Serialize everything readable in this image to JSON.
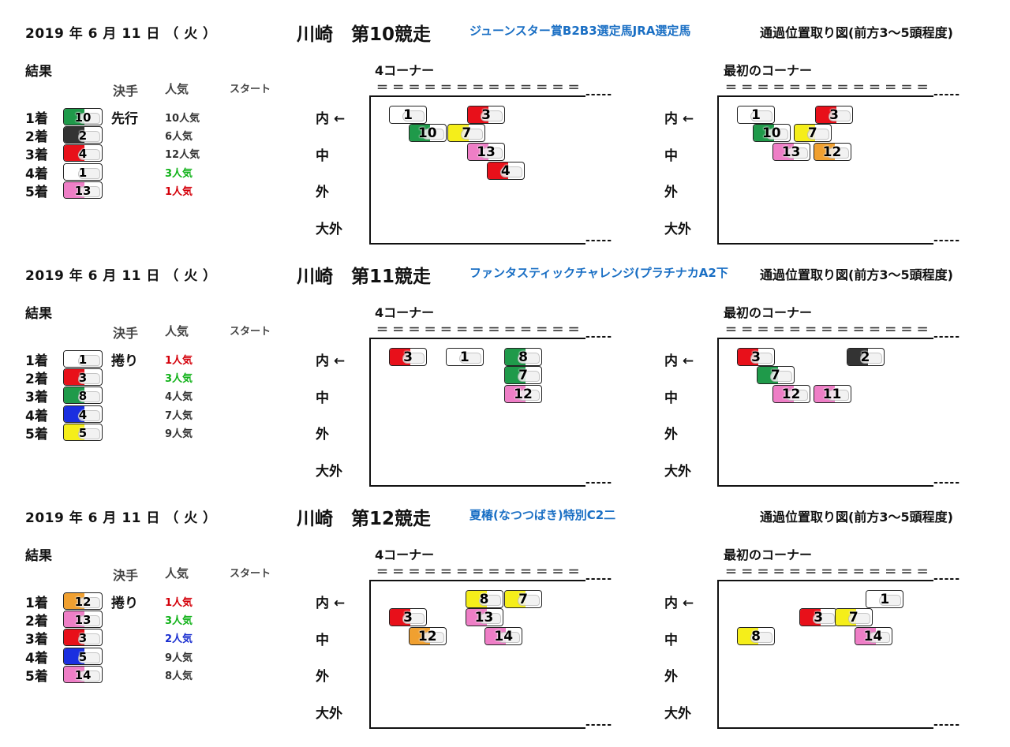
{
  "colors": {
    "white": "#ffffff",
    "black": "#333333",
    "red": "#e8101a",
    "blue": "#1a2fe0",
    "yellow": "#f5ee1a",
    "green": "#1f9a4a",
    "orange": "#f0a030",
    "pink": "#ee7ec6",
    "popRed": "#d4000a",
    "popGreen": "#12b21a",
    "popBlue": "#1a2fd0",
    "titleBlue": "#1a6fc4"
  },
  "labels": {
    "kekka": "結果",
    "kimete": "決手",
    "ninki": "人気",
    "start": "スタート",
    "corner4": "4コーナー",
    "cornerFirst": "最初のコーナー",
    "dashes": "＝ ＝ ＝ ＝ ＝ ＝ ＝ ＝ ＝ ＝ ＝ ＝ ＝",
    "tail": "-----",
    "rows": [
      "内 ←",
      "中",
      "外",
      "大外"
    ],
    "chartTitle": "通過位置取り図(前方3～5頭程度)"
  },
  "races": [
    {
      "date": "2019 年  6  月 11  日 （ 火 ）",
      "venue": "川崎　第10競走",
      "name": "ジューンスター賞B2B3選定馬JRA選定馬",
      "results": [
        {
          "rank": "1着",
          "num": "10",
          "color": "green",
          "method": "先行",
          "pop": "10人気",
          "popColor": "black"
        },
        {
          "rank": "2着",
          "num": "2",
          "color": "black",
          "method": "",
          "pop": "6人気",
          "popColor": "black"
        },
        {
          "rank": "3着",
          "num": "4",
          "color": "red",
          "method": "",
          "pop": "12人気",
          "popColor": "black"
        },
        {
          "rank": "4着",
          "num": "1",
          "color": "white",
          "method": "",
          "pop": "3人気",
          "popColor": "popGreen"
        },
        {
          "rank": "5着",
          "num": "13",
          "color": "pink",
          "method": "",
          "pop": "1人気",
          "popColor": "popRed"
        }
      ],
      "corner4": [
        {
          "num": "1",
          "color": "white",
          "col": 0,
          "row": 0
        },
        {
          "num": "3",
          "color": "red",
          "col": 2,
          "row": 0
        },
        {
          "num": "10",
          "color": "green",
          "col": 0.5,
          "row": 1
        },
        {
          "num": "7",
          "color": "yellow",
          "col": 1.5,
          "row": 1
        },
        {
          "num": "13",
          "color": "pink",
          "col": 2,
          "row": 2
        },
        {
          "num": "4",
          "color": "red",
          "col": 2.5,
          "row": 3
        }
      ],
      "cornerFirst": [
        {
          "num": "1",
          "color": "white",
          "col": 0,
          "row": 0
        },
        {
          "num": "3",
          "color": "red",
          "col": 2,
          "row": 0
        },
        {
          "num": "10",
          "color": "green",
          "col": 0.4,
          "row": 1
        },
        {
          "num": "7",
          "color": "yellow",
          "col": 1.45,
          "row": 1
        },
        {
          "num": "13",
          "color": "pink",
          "col": 0.9,
          "row": 2
        },
        {
          "num": "12",
          "color": "orange",
          "col": 1.95,
          "row": 2
        }
      ]
    },
    {
      "date": "2019 年  6  月 11  日 （ 火 ）",
      "venue": "川崎　第11競走",
      "name": "ファンタスティックチャレンジ(プラチナカA2下",
      "results": [
        {
          "rank": "1着",
          "num": "1",
          "color": "white",
          "method": "捲り",
          "pop": "1人気",
          "popColor": "popRed"
        },
        {
          "rank": "2着",
          "num": "3",
          "color": "red",
          "method": "",
          "pop": "3人気",
          "popColor": "popGreen"
        },
        {
          "rank": "3着",
          "num": "8",
          "color": "green",
          "method": "",
          "pop": "4人気",
          "popColor": "black"
        },
        {
          "rank": "4着",
          "num": "4",
          "color": "blue",
          "method": "",
          "pop": "7人気",
          "popColor": "black"
        },
        {
          "rank": "5着",
          "num": "5",
          "color": "yellow",
          "method": "",
          "pop": "9人気",
          "popColor": "black"
        }
      ],
      "corner4": [
        {
          "num": "3",
          "color": "red",
          "col": 0,
          "row": 0
        },
        {
          "num": "1",
          "color": "white",
          "col": 1.45,
          "row": 0
        },
        {
          "num": "8",
          "color": "green",
          "col": 2.95,
          "row": 0
        },
        {
          "num": "7",
          "color": "green",
          "col": 2.95,
          "row": 1
        },
        {
          "num": "12",
          "color": "pink",
          "col": 2.95,
          "row": 2
        }
      ],
      "cornerFirst": [
        {
          "num": "3",
          "color": "red",
          "col": 0,
          "row": 0
        },
        {
          "num": "2",
          "color": "black",
          "col": 2.8,
          "row": 0
        },
        {
          "num": "7",
          "color": "green",
          "col": 0.5,
          "row": 1
        },
        {
          "num": "12",
          "color": "pink",
          "col": 0.9,
          "row": 2
        },
        {
          "num": "11",
          "color": "pink",
          "col": 1.95,
          "row": 2
        }
      ]
    },
    {
      "date": "2019 年  6  月 11  日 （ 火 ）",
      "venue": "川崎　第12競走",
      "name": "夏椿(なつつばき)特別C2二",
      "results": [
        {
          "rank": "1着",
          "num": "12",
          "color": "orange",
          "method": "捲り",
          "pop": "1人気",
          "popColor": "popRed"
        },
        {
          "rank": "2着",
          "num": "13",
          "color": "pink",
          "method": "",
          "pop": "3人気",
          "popColor": "popGreen"
        },
        {
          "rank": "3着",
          "num": "3",
          "color": "red",
          "method": "",
          "pop": "2人気",
          "popColor": "popBlue"
        },
        {
          "rank": "4着",
          "num": "5",
          "color": "blue",
          "method": "",
          "pop": "9人気",
          "popColor": "black"
        },
        {
          "rank": "5着",
          "num": "14",
          "color": "pink",
          "method": "",
          "pop": "8人気",
          "popColor": "black"
        }
      ],
      "corner4": [
        {
          "num": "8",
          "color": "yellow",
          "col": 1.95,
          "row": 0
        },
        {
          "num": "7",
          "color": "yellow",
          "col": 2.95,
          "row": 0
        },
        {
          "num": "3",
          "color": "red",
          "col": 0,
          "row": 1
        },
        {
          "num": "13",
          "color": "pink",
          "col": 1.95,
          "row": 1
        },
        {
          "num": "12",
          "color": "orange",
          "col": 0.5,
          "row": 2
        },
        {
          "num": "14",
          "color": "pink",
          "col": 2.45,
          "row": 2
        }
      ],
      "cornerFirst": [
        {
          "num": "1",
          "color": "white",
          "col": 3.3,
          "row": 0
        },
        {
          "num": "3",
          "color": "red",
          "col": 1.6,
          "row": 1
        },
        {
          "num": "7",
          "color": "yellow",
          "col": 2.5,
          "row": 1
        },
        {
          "num": "8",
          "color": "yellow",
          "col": 0,
          "row": 2
        },
        {
          "num": "14",
          "color": "pink",
          "col": 3.0,
          "row": 2
        }
      ]
    }
  ]
}
